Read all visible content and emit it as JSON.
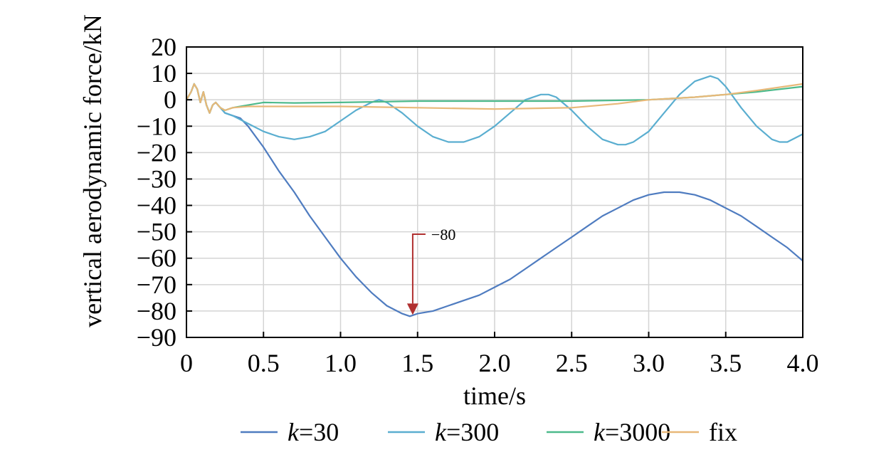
{
  "chart_data": {
    "type": "line",
    "xlabel": "time/s",
    "ylabel": "vertical aerodynamic force/kN",
    "xlim": [
      0,
      4.0
    ],
    "ylim": [
      -90,
      20
    ],
    "x_ticks": [
      0,
      0.5,
      1.0,
      1.5,
      2.0,
      2.5,
      3.0,
      3.5,
      4.0
    ],
    "x_tick_labels": [
      "0",
      "0.5",
      "1.0",
      "1.5",
      "2.0",
      "2.5",
      "3.0",
      "3.5",
      "4.0"
    ],
    "y_ticks": [
      20,
      10,
      0,
      -10,
      -20,
      -30,
      -40,
      -50,
      -60,
      -70,
      -80,
      -90
    ],
    "y_tick_labels": [
      "20",
      "10",
      "0",
      "−10",
      "−20",
      "−30",
      "−40",
      "−50",
      "−60",
      "−70",
      "−80",
      "−90"
    ],
    "grid": true,
    "legend_position": "bottom",
    "series": [
      {
        "name": "k=30",
        "name_italic": "k",
        "name_rest": "=30",
        "color": "#4f7cc0",
        "points": [
          [
            0,
            0
          ],
          [
            0.03,
            3
          ],
          [
            0.05,
            6
          ],
          [
            0.07,
            4
          ],
          [
            0.09,
            -1
          ],
          [
            0.11,
            3
          ],
          [
            0.13,
            -2
          ],
          [
            0.15,
            -5
          ],
          [
            0.17,
            -2
          ],
          [
            0.19,
            -1
          ],
          [
            0.22,
            -3
          ],
          [
            0.25,
            -5
          ],
          [
            0.3,
            -6
          ],
          [
            0.35,
            -7
          ],
          [
            0.4,
            -10
          ],
          [
            0.5,
            -18
          ],
          [
            0.6,
            -27
          ],
          [
            0.7,
            -35
          ],
          [
            0.8,
            -44
          ],
          [
            0.9,
            -52
          ],
          [
            1.0,
            -60
          ],
          [
            1.1,
            -67
          ],
          [
            1.2,
            -73
          ],
          [
            1.3,
            -78
          ],
          [
            1.4,
            -81
          ],
          [
            1.45,
            -82
          ],
          [
            1.5,
            -81
          ],
          [
            1.6,
            -80
          ],
          [
            1.7,
            -78
          ],
          [
            1.8,
            -76
          ],
          [
            1.9,
            -74
          ],
          [
            2.0,
            -71
          ],
          [
            2.1,
            -68
          ],
          [
            2.2,
            -64
          ],
          [
            2.3,
            -60
          ],
          [
            2.4,
            -56
          ],
          [
            2.5,
            -52
          ],
          [
            2.6,
            -48
          ],
          [
            2.7,
            -44
          ],
          [
            2.8,
            -41
          ],
          [
            2.9,
            -38
          ],
          [
            3.0,
            -36
          ],
          [
            3.1,
            -35
          ],
          [
            3.2,
            -35
          ],
          [
            3.3,
            -36
          ],
          [
            3.4,
            -38
          ],
          [
            3.5,
            -41
          ],
          [
            3.6,
            -44
          ],
          [
            3.7,
            -48
          ],
          [
            3.8,
            -52
          ],
          [
            3.9,
            -56
          ],
          [
            4.0,
            -61
          ]
        ]
      },
      {
        "name": "k=300",
        "name_italic": "k",
        "name_rest": "=300",
        "color": "#5aaed0",
        "points": [
          [
            0,
            0
          ],
          [
            0.03,
            3
          ],
          [
            0.05,
            6
          ],
          [
            0.07,
            4
          ],
          [
            0.09,
            -1
          ],
          [
            0.11,
            3
          ],
          [
            0.13,
            -2
          ],
          [
            0.15,
            -5
          ],
          [
            0.17,
            -2
          ],
          [
            0.19,
            -1
          ],
          [
            0.22,
            -3
          ],
          [
            0.25,
            -5
          ],
          [
            0.3,
            -6
          ],
          [
            0.4,
            -9
          ],
          [
            0.5,
            -12
          ],
          [
            0.6,
            -14
          ],
          [
            0.7,
            -15
          ],
          [
            0.8,
            -14
          ],
          [
            0.9,
            -12
          ],
          [
            1.0,
            -8
          ],
          [
            1.1,
            -4
          ],
          [
            1.2,
            -1
          ],
          [
            1.25,
            0
          ],
          [
            1.3,
            -1
          ],
          [
            1.4,
            -5
          ],
          [
            1.5,
            -10
          ],
          [
            1.6,
            -14
          ],
          [
            1.7,
            -16
          ],
          [
            1.75,
            -16
          ],
          [
            1.8,
            -16
          ],
          [
            1.9,
            -14
          ],
          [
            2.0,
            -10
          ],
          [
            2.1,
            -5
          ],
          [
            2.2,
            0
          ],
          [
            2.3,
            2
          ],
          [
            2.35,
            2
          ],
          [
            2.4,
            1
          ],
          [
            2.5,
            -4
          ],
          [
            2.6,
            -10
          ],
          [
            2.7,
            -15
          ],
          [
            2.8,
            -17
          ],
          [
            2.85,
            -17
          ],
          [
            2.9,
            -16
          ],
          [
            3.0,
            -12
          ],
          [
            3.1,
            -5
          ],
          [
            3.2,
            2
          ],
          [
            3.3,
            7
          ],
          [
            3.4,
            9
          ],
          [
            3.45,
            8
          ],
          [
            3.5,
            5
          ],
          [
            3.6,
            -3
          ],
          [
            3.7,
            -10
          ],
          [
            3.8,
            -15
          ],
          [
            3.85,
            -16
          ],
          [
            3.9,
            -16
          ],
          [
            4.0,
            -13
          ]
        ]
      },
      {
        "name": "k=3000",
        "name_italic": "k",
        "name_rest": "=3000",
        "color": "#4dba8c",
        "points": [
          [
            0,
            0
          ],
          [
            0.03,
            3
          ],
          [
            0.05,
            6
          ],
          [
            0.07,
            4
          ],
          [
            0.09,
            -1
          ],
          [
            0.11,
            3
          ],
          [
            0.13,
            -2
          ],
          [
            0.15,
            -5
          ],
          [
            0.17,
            -2
          ],
          [
            0.19,
            -1
          ],
          [
            0.22,
            -3
          ],
          [
            0.25,
            -4
          ],
          [
            0.3,
            -3
          ],
          [
            0.4,
            -2
          ],
          [
            0.5,
            -1
          ],
          [
            0.7,
            -1.2
          ],
          [
            1.0,
            -1
          ],
          [
            1.5,
            -0.5
          ],
          [
            2.0,
            -0.5
          ],
          [
            2.5,
            -0.5
          ],
          [
            3.0,
            0
          ],
          [
            3.3,
            1
          ],
          [
            3.5,
            2
          ],
          [
            3.7,
            3
          ],
          [
            4.0,
            5
          ]
        ]
      },
      {
        "name": "fix",
        "name_italic": "",
        "name_rest": "fix",
        "color": "#e8b878",
        "points": [
          [
            0,
            0
          ],
          [
            0.03,
            3
          ],
          [
            0.05,
            6
          ],
          [
            0.07,
            4
          ],
          [
            0.09,
            -1
          ],
          [
            0.11,
            3
          ],
          [
            0.13,
            -2
          ],
          [
            0.15,
            -5
          ],
          [
            0.17,
            -2
          ],
          [
            0.19,
            -1
          ],
          [
            0.22,
            -3
          ],
          [
            0.25,
            -4
          ],
          [
            0.3,
            -3
          ],
          [
            0.4,
            -2.5
          ],
          [
            0.6,
            -2.5
          ],
          [
            1.0,
            -2.5
          ],
          [
            1.5,
            -3
          ],
          [
            2.0,
            -3.5
          ],
          [
            2.5,
            -3
          ],
          [
            2.8,
            -1.5
          ],
          [
            3.0,
            0
          ],
          [
            3.3,
            1
          ],
          [
            3.5,
            2
          ],
          [
            3.7,
            3.5
          ],
          [
            4.0,
            6
          ]
        ]
      }
    ],
    "annotations": [
      {
        "text": "−80",
        "x": 1.45,
        "y": -82,
        "color": "#b03030"
      }
    ]
  }
}
